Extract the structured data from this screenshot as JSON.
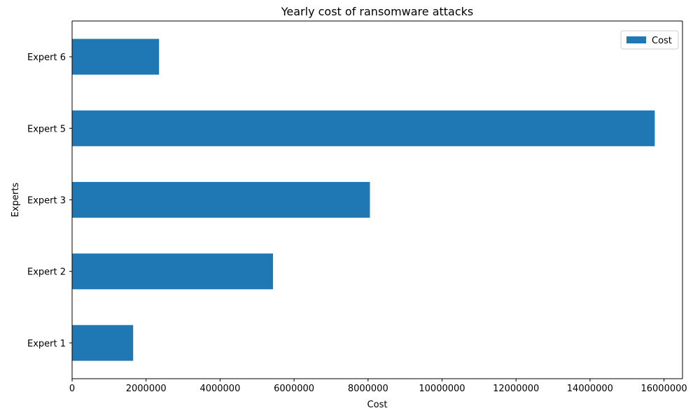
{
  "chart_data": {
    "type": "bar",
    "orientation": "horizontal",
    "title": "Yearly cost of ransomware attacks",
    "xlabel": "Cost",
    "ylabel": "Experts",
    "categories": [
      "Expert 1",
      "Expert 2",
      "Expert 3",
      "Expert 5",
      "Expert 6"
    ],
    "series": [
      {
        "name": "Cost",
        "values": [
          1650000,
          5430000,
          8050000,
          15750000,
          2350000
        ],
        "color": "#1f77b4"
      }
    ],
    "xlim": [
      0,
      16500000
    ],
    "xticks": [
      0,
      2000000,
      4000000,
      6000000,
      8000000,
      10000000,
      12000000,
      14000000,
      16000000
    ],
    "xtick_labels": [
      "0",
      "2000000",
      "4000000",
      "6000000",
      "8000000",
      "10000000",
      "12000000",
      "14000000",
      "16000000"
    ],
    "grid": false,
    "legend_position": "top-right"
  }
}
